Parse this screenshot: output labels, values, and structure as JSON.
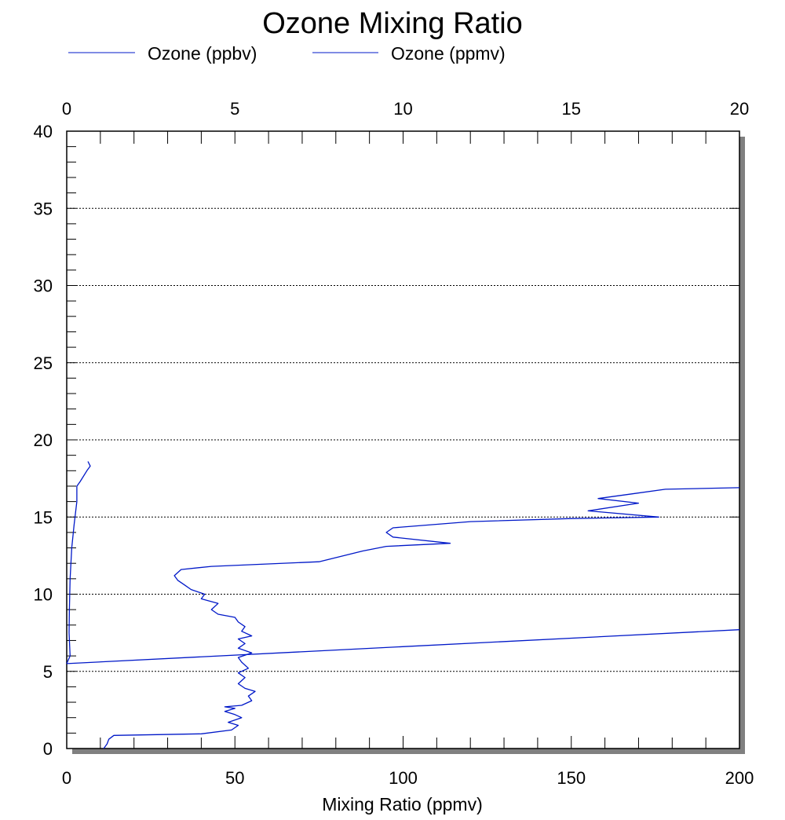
{
  "chart_data": {
    "type": "line",
    "title": "Ozone Mixing Ratio",
    "xlabel": "Mixing Ratio (ppmv)",
    "ylabel": "",
    "x_bottom": {
      "lim": [
        0,
        200
      ],
      "ticks": [
        0,
        50,
        100,
        150,
        200
      ]
    },
    "x_top": {
      "lim": [
        0,
        20
      ],
      "ticks": [
        0,
        5,
        10,
        15,
        20
      ]
    },
    "ylim": [
      0,
      40
    ],
    "yticks": [
      0,
      5,
      10,
      15,
      20,
      25,
      30,
      35,
      40
    ],
    "grid": "horizontal dotted at major y ticks",
    "legend": {
      "placement": "top",
      "entries": [
        "Ozone (ppbv)",
        "Ozone (ppmv)"
      ]
    },
    "colors": {
      "series": "#0018c8",
      "frame": "#000000",
      "shadow": "#808080"
    },
    "series": [
      {
        "name": "Ozone (ppbv)",
        "axis": "bottom",
        "points": [
          [
            11,
            0.0
          ],
          [
            12,
            0.3
          ],
          [
            12.5,
            0.6
          ],
          [
            14,
            0.85
          ],
          [
            40,
            0.95
          ],
          [
            49,
            1.2
          ],
          [
            51,
            1.5
          ],
          [
            48,
            1.7
          ],
          [
            52,
            2.0
          ],
          [
            50,
            2.2
          ],
          [
            47,
            2.4
          ],
          [
            50,
            2.6
          ],
          [
            47,
            2.7
          ],
          [
            52,
            2.8
          ],
          [
            55,
            3.1
          ],
          [
            54,
            3.4
          ],
          [
            56,
            3.7
          ],
          [
            53,
            3.9
          ],
          [
            51,
            4.2
          ],
          [
            53,
            4.6
          ],
          [
            51,
            4.9
          ],
          [
            54,
            5.2
          ],
          [
            52,
            5.6
          ],
          [
            51,
            5.9
          ],
          [
            55,
            6.2
          ],
          [
            51,
            6.5
          ],
          [
            53,
            6.8
          ],
          [
            51,
            7.1
          ],
          [
            55,
            7.3
          ],
          [
            52,
            7.6
          ],
          [
            53,
            7.9
          ],
          [
            51,
            8.2
          ],
          [
            50,
            8.5
          ],
          [
            45,
            8.7
          ],
          [
            43,
            9.0
          ],
          [
            45,
            9.4
          ],
          [
            40,
            9.7
          ],
          [
            41,
            10.0
          ],
          [
            37,
            10.3
          ],
          [
            35,
            10.6
          ],
          [
            33,
            10.9
          ],
          [
            32,
            11.2
          ],
          [
            34,
            11.6
          ],
          [
            43,
            11.8
          ],
          [
            75,
            12.1
          ],
          [
            88,
            12.8
          ],
          [
            95,
            13.1
          ],
          [
            114,
            13.3
          ],
          [
            97,
            13.7
          ],
          [
            95,
            14.0
          ],
          [
            97,
            14.3
          ],
          [
            120,
            14.7
          ],
          [
            150,
            14.9
          ],
          [
            176,
            15.0
          ],
          [
            155,
            15.4
          ],
          [
            170,
            15.9
          ],
          [
            158,
            16.2
          ],
          [
            168,
            16.5
          ],
          [
            178,
            16.8
          ],
          [
            200,
            16.9
          ]
        ]
      },
      {
        "name": "Ozone (ppmv)",
        "axis": "top",
        "points": [
          [
            0.0,
            5.5
          ],
          [
            0.1,
            6.0
          ],
          [
            0.07,
            7.5
          ],
          [
            0.08,
            9.0
          ],
          [
            0.1,
            11.0
          ],
          [
            0.15,
            13.0
          ],
          [
            0.22,
            14.5
          ],
          [
            0.3,
            16.0
          ],
          [
            0.3,
            17.0
          ],
          [
            0.4,
            17.3
          ],
          [
            0.6,
            18.0
          ],
          [
            0.7,
            18.3
          ],
          [
            0.63,
            18.6
          ]
        ]
      },
      {
        "name": "",
        "axis": "bottom",
        "points": [
          [
            0,
            5.5
          ],
          [
            200,
            7.7
          ]
        ]
      }
    ]
  }
}
